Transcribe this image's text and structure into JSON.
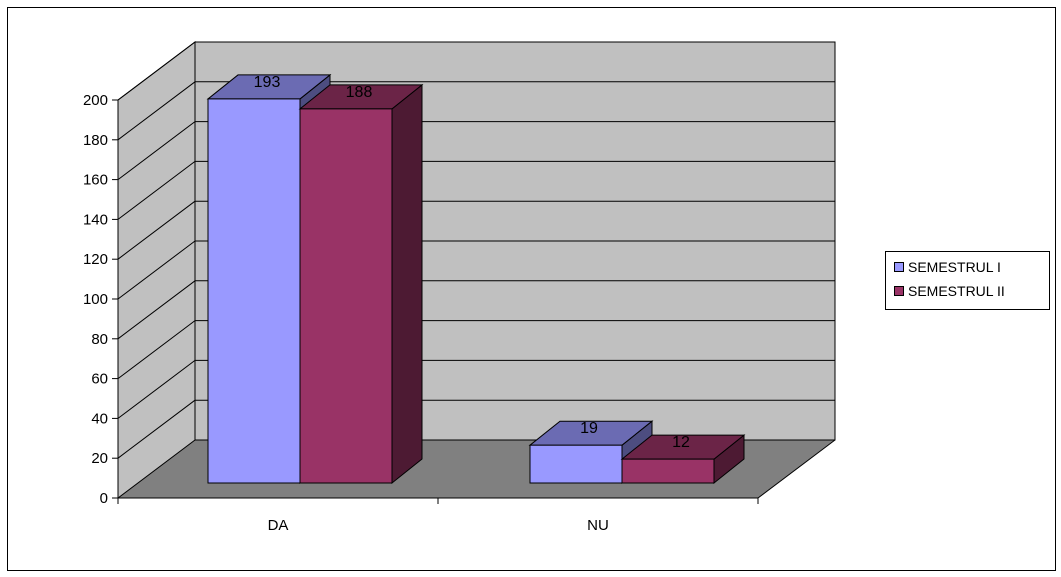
{
  "chart_data": {
    "type": "bar",
    "style": "3d-clustered-column",
    "categories": [
      "DA",
      "NU"
    ],
    "series": [
      {
        "name": "SEMESTRUL I",
        "values": [
          193,
          19
        ],
        "color": "#9999FF"
      },
      {
        "name": "SEMESTRUL II",
        "values": [
          188,
          12
        ],
        "color": "#993366"
      }
    ],
    "data_labels": [
      [
        "193",
        "19"
      ],
      [
        "188",
        "12"
      ]
    ],
    "ylim": [
      0,
      200
    ],
    "yticks": [
      "0",
      "20",
      "40",
      "60",
      "80",
      "100",
      "120",
      "140",
      "160",
      "180",
      "200"
    ],
    "grid": true,
    "legend": "right",
    "colors": {
      "wall": "#C0C0C0",
      "floor": "#808080",
      "gridline": "#000000"
    }
  }
}
